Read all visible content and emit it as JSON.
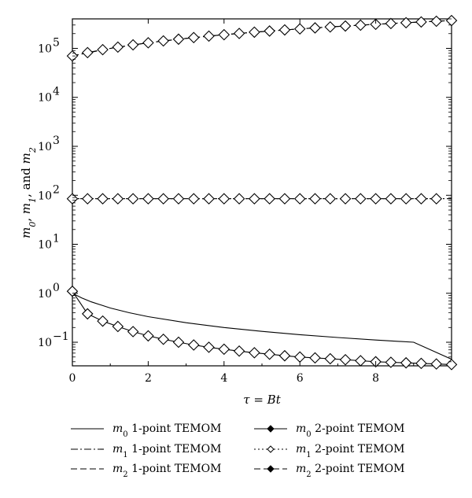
{
  "chart_data": {
    "type": "line",
    "xlabel": "τ = Bt",
    "ylabel": "m0, m1, and m2",
    "yscale": "log",
    "xlim": [
      0,
      10
    ],
    "ylim": [
      0.033,
      400000
    ],
    "x_ticks": [
      0,
      2,
      4,
      6,
      8
    ],
    "x_tick_labels": [
      "0",
      "2",
      "4",
      "6",
      "8"
    ],
    "y_ticks": [
      0.1,
      1,
      10,
      100,
      1000,
      10000,
      100000
    ],
    "y_tick_labels": [
      {
        "base": "10",
        "exp": "−1"
      },
      {
        "base": "10",
        "exp": "0"
      },
      {
        "base": "10",
        "exp": "1"
      },
      {
        "base": "10",
        "exp": "2"
      },
      {
        "base": "10",
        "exp": "3"
      },
      {
        "base": "10",
        "exp": "4"
      },
      {
        "base": "10",
        "exp": "5"
      }
    ],
    "grid": false,
    "legend_position": "bottom",
    "series": [
      {
        "name": "m0 1-point TEMOM",
        "sym": "m",
        "sub": "0",
        "rest": " 1-point TEMOM",
        "style": "solid",
        "marker": "none",
        "x": [
          0,
          0.25,
          0.5,
          1,
          1.5,
          2,
          3,
          4,
          5,
          6,
          7,
          8,
          9,
          10
        ],
        "y": [
          1.0,
          0.8,
          0.667,
          0.5,
          0.4,
          0.333,
          0.25,
          0.2,
          0.167,
          0.143,
          0.125,
          0.111,
          0.1,
          0.045
        ]
      },
      {
        "name": "m1 1-point TEMOM",
        "sym": "m",
        "sub": "1",
        "rest": " 1-point TEMOM",
        "style": "dashdot",
        "marker": "none",
        "x": [
          0,
          10
        ],
        "y": [
          85,
          85
        ]
      },
      {
        "name": "m2 1-point TEMOM",
        "sym": "m",
        "sub": "2",
        "rest": " 1-point TEMOM",
        "style": "dashed",
        "marker": "none",
        "x": [
          0,
          1,
          2,
          3,
          4,
          5,
          6,
          7,
          8,
          9,
          10
        ],
        "y": [
          70000,
          100000,
          130000,
          160000,
          190000,
          220000,
          250000,
          280000,
          310000,
          340000,
          370000
        ]
      },
      {
        "name": "m0 2-point TEMOM",
        "sym": "m",
        "sub": "0",
        "rest": " 2-point TEMOM",
        "style": "solid",
        "marker": "diamond",
        "x": [
          0,
          0.4,
          0.8,
          1.2,
          1.6,
          2.0,
          2.4,
          2.8,
          3.2,
          3.6,
          4.0,
          4.4,
          4.8,
          5.2,
          5.6,
          6.0,
          6.4,
          6.8,
          7.2,
          7.6,
          8.0,
          8.4,
          8.8,
          9.2,
          9.6,
          10.0
        ],
        "y": [
          1.1,
          0.38,
          0.27,
          0.21,
          0.165,
          0.135,
          0.115,
          0.1,
          0.088,
          0.079,
          0.072,
          0.066,
          0.061,
          0.057,
          0.053,
          0.05,
          0.048,
          0.046,
          0.044,
          0.042,
          0.04,
          0.039,
          0.038,
          0.037,
          0.036,
          0.035
        ]
      },
      {
        "name": "m1 2-point TEMOM",
        "sym": "m",
        "sub": "1",
        "rest": " 2-point TEMOM",
        "style": "dotted",
        "marker": "diamond",
        "x": [
          0,
          0.4,
          0.8,
          1.2,
          1.6,
          2.0,
          2.4,
          2.8,
          3.2,
          3.6,
          4.0,
          4.4,
          4.8,
          5.2,
          5.6,
          6.0,
          6.4,
          6.8,
          7.2,
          7.6,
          8.0,
          8.4,
          8.8,
          9.2,
          9.6
        ],
        "y": [
          85,
          85,
          85,
          85,
          85,
          85,
          85,
          85,
          85,
          85,
          85,
          85,
          85,
          85,
          85,
          85,
          85,
          85,
          85,
          85,
          85,
          85,
          85,
          85,
          85
        ]
      },
      {
        "name": "m2 2-point TEMOM",
        "sym": "m",
        "sub": "2",
        "rest": " 2-point TEMOM",
        "style": "dashed",
        "marker": "diamond",
        "x": [
          0,
          0.4,
          0.8,
          1.2,
          1.6,
          2.0,
          2.4,
          2.8,
          3.2,
          3.6,
          4.0,
          4.4,
          4.8,
          5.2,
          5.6,
          6.0,
          6.4,
          6.8,
          7.2,
          7.6,
          8.0,
          8.4,
          8.8,
          9.2,
          9.6,
          10.0
        ],
        "y": [
          70000,
          82000,
          94000,
          106000,
          118000,
          130000,
          142000,
          154000,
          166000,
          178000,
          190000,
          202000,
          214000,
          226000,
          238000,
          250000,
          262000,
          274000,
          286000,
          298000,
          310000,
          322000,
          334000,
          346000,
          358000,
          370000
        ]
      }
    ]
  }
}
